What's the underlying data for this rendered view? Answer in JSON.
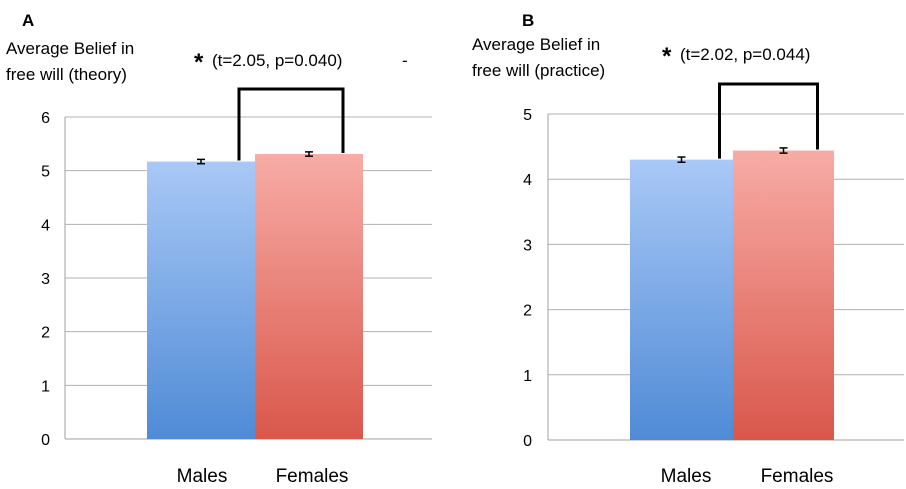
{
  "chart_data": [
    {
      "type": "bar",
      "panel_label": "A",
      "ylabel_lines": [
        "Average Belief in",
        "free will (theory)"
      ],
      "categories": [
        "Males",
        "Females"
      ],
      "values": [
        5.17,
        5.31
      ],
      "errors": [
        0.04,
        0.04
      ],
      "ylim": [
        0,
        6
      ],
      "yticks": [
        "0",
        "1",
        "2",
        "3",
        "4",
        "5",
        "6"
      ],
      "grid": true,
      "annotation": {
        "star": "*",
        "text": "(t=2.05,   p=0.040)",
        "extra": "-"
      },
      "colors": {
        "Males": "#7ba7e6",
        "Females": "#e58277"
      }
    },
    {
      "type": "bar",
      "panel_label": "B",
      "ylabel_lines": [
        "Average Belief in",
        "free will (practice)"
      ],
      "categories": [
        "Males",
        "Females"
      ],
      "values": [
        4.3,
        4.44
      ],
      "errors": [
        0.04,
        0.04
      ],
      "ylim": [
        0,
        5
      ],
      "yticks": [
        "0",
        "1",
        "2",
        "3",
        "4",
        "5"
      ],
      "grid": true,
      "annotation": {
        "star": "*",
        "text": "(t=2.02, p=0.044)"
      },
      "colors": {
        "Males": "#7ba7e6",
        "Females": "#e58277"
      }
    }
  ]
}
